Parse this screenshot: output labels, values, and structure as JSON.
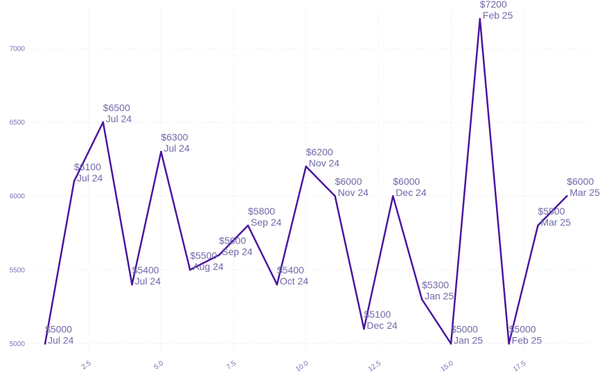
{
  "chart_data": {
    "type": "line",
    "title": "",
    "xlabel": "",
    "ylabel": "",
    "xlim": [
      0.4,
      19.9
    ],
    "ylim": [
      4960,
      7290
    ],
    "grid": true,
    "legend": "none",
    "colors": {
      "line": "#4a16a0",
      "label": "#6f69a8",
      "tick": "#7a6fb0",
      "grid": "#ececf2"
    },
    "x_ticks": [
      {
        "value": 2.5,
        "label": "2.5"
      },
      {
        "value": 5.0,
        "label": "5.0"
      },
      {
        "value": 7.5,
        "label": "7.5"
      },
      {
        "value": 10.0,
        "label": "10.0"
      },
      {
        "value": 12.5,
        "label": "12.5"
      },
      {
        "value": 15.0,
        "label": "15.0"
      },
      {
        "value": 17.5,
        "label": "17.5"
      }
    ],
    "y_ticks": [
      {
        "value": 5000,
        "label": "5000"
      },
      {
        "value": 5500,
        "label": "5500"
      },
      {
        "value": 6000,
        "label": "6000"
      },
      {
        "value": 6500,
        "label": "6500"
      },
      {
        "value": 7000,
        "label": "7000"
      }
    ],
    "series": [
      {
        "name": "value",
        "points": [
          {
            "x": 1,
            "y": 5000,
            "amount": "$5000",
            "month": "Jul 24"
          },
          {
            "x": 2,
            "y": 6100,
            "amount": "$6100",
            "month": "Jul 24"
          },
          {
            "x": 3,
            "y": 6500,
            "amount": "$6500",
            "month": "Jul 24"
          },
          {
            "x": 4,
            "y": 5400,
            "amount": "$5400",
            "month": "Jul 24"
          },
          {
            "x": 5,
            "y": 6300,
            "amount": "$6300",
            "month": "Jul 24"
          },
          {
            "x": 6,
            "y": 5500,
            "amount": "$5500",
            "month": "Aug 24"
          },
          {
            "x": 7,
            "y": 5600,
            "amount": "$5600",
            "month": "Sep 24"
          },
          {
            "x": 8,
            "y": 5800,
            "amount": "$5800",
            "month": "Sep 24"
          },
          {
            "x": 9,
            "y": 5400,
            "amount": "$5400",
            "month": "Oct 24"
          },
          {
            "x": 10,
            "y": 6200,
            "amount": "$6200",
            "month": "Nov 24"
          },
          {
            "x": 11,
            "y": 6000,
            "amount": "$6000",
            "month": "Nov 24"
          },
          {
            "x": 12,
            "y": 5100,
            "amount": "$5100",
            "month": "Dec 24"
          },
          {
            "x": 13,
            "y": 6000,
            "amount": "$6000",
            "month": "Dec 24"
          },
          {
            "x": 14,
            "y": 5300,
            "amount": "$5300",
            "month": "Jan 25"
          },
          {
            "x": 15,
            "y": 5000,
            "amount": "$5000",
            "month": "Jan 25"
          },
          {
            "x": 16,
            "y": 7200,
            "amount": "$7200",
            "month": "Feb 25"
          },
          {
            "x": 17,
            "y": 5000,
            "amount": "$5000",
            "month": "Feb 25"
          },
          {
            "x": 18,
            "y": 5800,
            "amount": "$5800",
            "month": "Mar 25"
          },
          {
            "x": 19,
            "y": 6000,
            "amount": "$6000",
            "month": "Mar 25"
          }
        ]
      }
    ]
  }
}
